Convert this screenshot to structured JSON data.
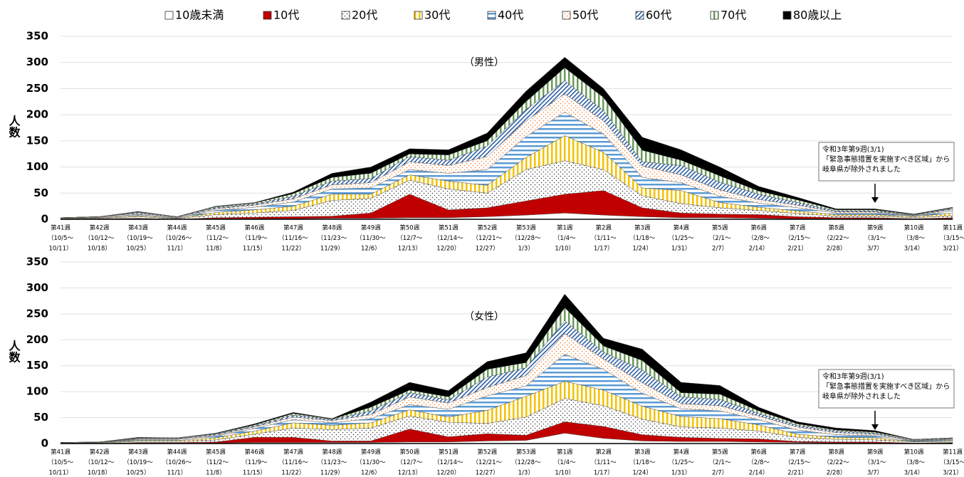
{
  "chart_data": [
    {
      "type": "area",
      "stacked": true,
      "title": "（男性）",
      "ylabel": "人数",
      "categories": [
        [
          "第41週",
          "（10/5～",
          "10/11）"
        ],
        [
          "第42週",
          "（10/12～",
          "10/18）"
        ],
        [
          "第43週",
          "（10/19～",
          "10/25）"
        ],
        [
          "第44週",
          "（10/26～",
          "11/1）"
        ],
        [
          "第45週",
          "（11/2～",
          "11/8）"
        ],
        [
          "第46週",
          "（11/9～",
          "11/15）"
        ],
        [
          "第47週",
          "（11/16～",
          "11/22）"
        ],
        [
          "第48週",
          "（11/23～",
          "11/29）"
        ],
        [
          "第49週",
          "（11/30～",
          "12/6）"
        ],
        [
          "第50週",
          "（12/7～",
          "12/13）"
        ],
        [
          "第51週",
          "（12/14～",
          "12/20）"
        ],
        [
          "第52週",
          "（12/21～",
          "12/27）"
        ],
        [
          "第53週",
          "（12/28～",
          "1/3）"
        ],
        [
          "第1週",
          "（1/4～",
          "1/10）"
        ],
        [
          "第2週",
          "（1/11～",
          "1/17）"
        ],
        [
          "第3週",
          "（1/18～",
          "1/24）"
        ],
        [
          "第4週",
          "（1/25～",
          "1/31）"
        ],
        [
          "第5週",
          "（2/1～",
          "2/7）"
        ],
        [
          "第6週",
          "（2/8～",
          "2/14）"
        ],
        [
          "第7週",
          "（2/15～",
          "2/21）"
        ],
        [
          "第8週",
          "（2/22～",
          "2/28）"
        ],
        [
          "第9週",
          "（3/1～",
          "3/7）"
        ],
        [
          "第10週",
          "（3/8～",
          "3/14）"
        ],
        [
          "第11週",
          "（3/15～",
          "3/21）"
        ]
      ],
      "series": [
        {
          "name": "10歳未満",
          "color": "#ffffff",
          "pattern": "solid",
          "values": [
            0,
            0,
            1,
            0,
            1,
            1,
            1,
            2,
            2,
            3,
            3,
            5,
            8,
            12,
            8,
            5,
            3,
            3,
            2,
            1,
            1,
            1,
            0,
            1
          ]
        },
        {
          "name": "10代",
          "color": "#c00000",
          "pattern": "solid",
          "values": [
            0,
            1,
            1,
            0,
            2,
            3,
            4,
            4,
            10,
            45,
            15,
            17,
            27,
            36,
            47,
            17,
            9,
            7,
            7,
            4,
            2,
            2,
            1,
            2
          ]
        },
        {
          "name": "20代",
          "color": "#404040",
          "pattern": "dots",
          "values": [
            1,
            1,
            3,
            1,
            6,
            8,
            12,
            30,
            28,
            27,
            40,
            28,
            60,
            64,
            40,
            23,
            18,
            12,
            8,
            6,
            3,
            3,
            2,
            4
          ]
        },
        {
          "name": "30代",
          "color": "#f2c200",
          "pattern": "vertical",
          "values": [
            1,
            1,
            2,
            1,
            4,
            6,
            8,
            12,
            8,
            10,
            15,
            15,
            23,
            48,
            33,
            15,
            25,
            10,
            6,
            5,
            3,
            3,
            2,
            5
          ]
        },
        {
          "name": "40代",
          "color": "#5b9bd5",
          "pattern": "horizontal",
          "values": [
            0,
            1,
            2,
            1,
            4,
            5,
            8,
            10,
            12,
            10,
            15,
            30,
            40,
            45,
            35,
            20,
            15,
            12,
            8,
            6,
            3,
            3,
            1,
            4
          ]
        },
        {
          "name": "50代",
          "color": "#ed7d31",
          "pattern": "dots",
          "values": [
            1,
            1,
            2,
            1,
            3,
            4,
            6,
            8,
            10,
            15,
            15,
            25,
            30,
            35,
            25,
            22,
            15,
            12,
            7,
            5,
            2,
            2,
            1,
            3
          ]
        },
        {
          "name": "60代",
          "color": "#2e5fa5",
          "pattern": "diagonal",
          "values": [
            0,
            0,
            2,
            1,
            2,
            2,
            5,
            7,
            8,
            10,
            10,
            20,
            22,
            25,
            20,
            8,
            18,
            15,
            10,
            5,
            2,
            2,
            1,
            2
          ]
        },
        {
          "name": "70代",
          "color": "#6a9a5a",
          "pattern": "vertical",
          "values": [
            0,
            0,
            1,
            0,
            2,
            2,
            5,
            7,
            10,
            5,
            10,
            10,
            15,
            25,
            25,
            22,
            10,
            12,
            6,
            5,
            2,
            2,
            1,
            1
          ]
        },
        {
          "name": "80歳以上",
          "color": "#000000",
          "pattern": "solid",
          "values": [
            0,
            0,
            1,
            0,
            1,
            1,
            3,
            8,
            12,
            10,
            10,
            15,
            20,
            20,
            17,
            25,
            20,
            17,
            9,
            5,
            2,
            2,
            1,
            1
          ]
        }
      ],
      "ylim": [
        0,
        350
      ],
      "yticks": [
        0,
        50,
        100,
        150,
        200,
        250,
        300,
        350
      ],
      "grid": true,
      "annotation": [
        "令和3年第9週(3/1)",
        "「緊急事態措置を実施すべき区域」から",
        "岐阜県が除外されました"
      ]
    },
    {
      "type": "area",
      "stacked": true,
      "title": "（女性）",
      "ylabel": "人数",
      "categories": [
        [
          "第41週",
          "（10/5～",
          "10/11）"
        ],
        [
          "第42週",
          "（10/12～",
          "10/18）"
        ],
        [
          "第43週",
          "（10/19～",
          "10/25）"
        ],
        [
          "第44週",
          "（10/26～",
          "11/1）"
        ],
        [
          "第45週",
          "（11/2～",
          "11/8）"
        ],
        [
          "第46週",
          "（11/9～",
          "11/15）"
        ],
        [
          "第47週",
          "（11/16～",
          "11/22）"
        ],
        [
          "第48週",
          "（11/23～",
          "11/29）"
        ],
        [
          "第49週",
          "（11/30～",
          "12/6）"
        ],
        [
          "第50週",
          "（12/7～",
          "12/13）"
        ],
        [
          "第51週",
          "（12/14～",
          "12/20）"
        ],
        [
          "第52週",
          "（12/21～",
          "12/27）"
        ],
        [
          "第53週",
          "（12/28～",
          "1/3）"
        ],
        [
          "第1週",
          "（1/4～",
          "1/10）"
        ],
        [
          "第2週",
          "（1/11～",
          "1/17）"
        ],
        [
          "第3週",
          "（1/18～",
          "1/24）"
        ],
        [
          "第4週",
          "（1/25～",
          "1/31）"
        ],
        [
          "第5週",
          "（2/1～",
          "2/7）"
        ],
        [
          "第6週",
          "（2/8～",
          "2/14）"
        ],
        [
          "第7週",
          "（2/15～",
          "2/21）"
        ],
        [
          "第8週",
          "（2/22～",
          "2/28）"
        ],
        [
          "第9週",
          "（3/1～",
          "3/7）"
        ],
        [
          "第10週",
          "（3/8～",
          "3/14）"
        ],
        [
          "第11週",
          "（3/15～",
          "3/21）"
        ]
      ],
      "series": [
        {
          "color": "#ffffff",
          "pattern": "solid",
          "values": [
            0,
            0,
            1,
            1,
            1,
            2,
            2,
            2,
            2,
            3,
            3,
            5,
            6,
            20,
            10,
            5,
            4,
            4,
            3,
            2,
            1,
            1,
            0,
            1
          ]
        },
        {
          "color": "#c00000",
          "pattern": "solid",
          "values": [
            0,
            0,
            1,
            1,
            2,
            10,
            10,
            3,
            3,
            25,
            10,
            14,
            10,
            22,
            23,
            12,
            8,
            6,
            6,
            2,
            2,
            2,
            1,
            1
          ]
        },
        {
          "color": "#404040",
          "pattern": "dots",
          "values": [
            1,
            1,
            2,
            2,
            4,
            6,
            18,
            22,
            25,
            25,
            28,
            20,
            35,
            45,
            40,
            30,
            20,
            20,
            15,
            8,
            5,
            4,
            2,
            2
          ]
        },
        {
          "color": "#f2c200",
          "pattern": "vertical",
          "values": [
            0,
            1,
            2,
            2,
            4,
            6,
            10,
            8,
            10,
            12,
            10,
            25,
            40,
            33,
            30,
            25,
            20,
            18,
            12,
            6,
            4,
            4,
            1,
            2
          ]
        },
        {
          "color": "#5b9bd5",
          "pattern": "horizontal",
          "values": [
            0,
            0,
            2,
            2,
            3,
            5,
            6,
            5,
            8,
            10,
            15,
            28,
            20,
            52,
            40,
            25,
            15,
            15,
            10,
            8,
            5,
            4,
            1,
            2
          ]
        },
        {
          "color": "#ed7d31",
          "pattern": "dots",
          "values": [
            1,
            1,
            1,
            1,
            2,
            3,
            5,
            4,
            8,
            15,
            12,
            16,
            20,
            40,
            20,
            20,
            10,
            10,
            7,
            6,
            4,
            3,
            1,
            1
          ]
        },
        {
          "color": "#2e5fa5",
          "pattern": "diagonal",
          "values": [
            0,
            0,
            1,
            1,
            2,
            2,
            4,
            2,
            7,
            8,
            6,
            20,
            15,
            25,
            13,
            25,
            13,
            12,
            5,
            3,
            3,
            2,
            1,
            1
          ]
        },
        {
          "color": "#6a9a5a",
          "pattern": "vertical",
          "values": [
            0,
            0,
            1,
            1,
            1,
            2,
            3,
            1,
            7,
            5,
            6,
            15,
            10,
            25,
            12,
            18,
            8,
            10,
            5,
            3,
            2,
            2,
            1,
            1
          ]
        },
        {
          "color": "#000000",
          "pattern": "solid",
          "values": [
            0,
            0,
            1,
            0,
            1,
            2,
            2,
            1,
            10,
            15,
            12,
            15,
            19,
            26,
            15,
            22,
            20,
            17,
            7,
            4,
            4,
            3,
            0,
            0
          ]
        }
      ],
      "ylim": [
        0,
        350
      ],
      "yticks": [
        0,
        50,
        100,
        150,
        200,
        250,
        300,
        350
      ],
      "grid": true,
      "annotation": [
        "令和3年第9週(3/1)",
        "「緊急事態措置を実施すべき区域」から",
        "岐阜県が除外されました"
      ]
    }
  ]
}
